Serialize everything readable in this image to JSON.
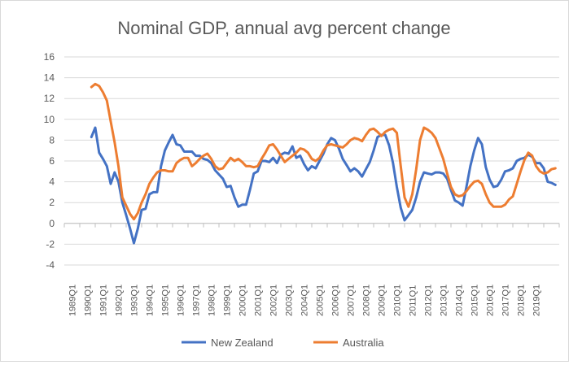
{
  "chart_data": {
    "type": "line",
    "title": "Nominal GDP, annual avg percent change",
    "xlabel": "",
    "ylabel": "",
    "ylim": [
      -4,
      16
    ],
    "yticks": [
      -4,
      -2,
      0,
      2,
      4,
      6,
      8,
      10,
      12,
      14,
      16
    ],
    "grid": "horizontal",
    "legend_position": "bottom",
    "x_tick_labels": [
      "1989Q1",
      "1990Q1",
      "1991Q1",
      "1992Q1",
      "1993Q1",
      "1994Q1",
      "1995Q1",
      "1996Q1",
      "1997Q1",
      "1998Q1",
      "1999Q1",
      "2000Q1",
      "2001Q1",
      "2002Q1",
      "2003Q1",
      "2004Q1",
      "2005Q1",
      "2006Q1",
      "2007Q1",
      "2008Q1",
      "2009Q1",
      "2010Q1",
      "2011Q1",
      "2012Q1",
      "2013Q1",
      "2014Q1",
      "2015Q1",
      "2016Q1",
      "2017Q1",
      "2018Q1",
      "2019Q1"
    ],
    "x_start": 1989.0,
    "x_end": 2021.0,
    "series": [
      {
        "name": "New Zealand",
        "color": "#4472C4",
        "points": [
          [
            1990.75,
            8.3
          ],
          [
            1991.0,
            9.2
          ],
          [
            1991.25,
            6.8
          ],
          [
            1991.5,
            6.2
          ],
          [
            1991.75,
            5.5
          ],
          [
            1992.0,
            3.8
          ],
          [
            1992.25,
            4.9
          ],
          [
            1992.5,
            4.0
          ],
          [
            1992.75,
            2.0
          ],
          [
            1993.0,
            0.8
          ],
          [
            1993.25,
            -0.5
          ],
          [
            1993.5,
            -1.9
          ],
          [
            1993.75,
            -0.5
          ],
          [
            1994.0,
            1.3
          ],
          [
            1994.25,
            1.4
          ],
          [
            1994.5,
            2.8
          ],
          [
            1994.75,
            3.0
          ],
          [
            1995.0,
            3.0
          ],
          [
            1995.25,
            5.5
          ],
          [
            1995.5,
            7.0
          ],
          [
            1995.75,
            7.8
          ],
          [
            1996.0,
            8.5
          ],
          [
            1996.25,
            7.6
          ],
          [
            1996.5,
            7.5
          ],
          [
            1996.75,
            6.9
          ],
          [
            1997.0,
            6.9
          ],
          [
            1997.25,
            6.9
          ],
          [
            1997.5,
            6.5
          ],
          [
            1997.75,
            6.5
          ],
          [
            1998.0,
            6.2
          ],
          [
            1998.25,
            6.1
          ],
          [
            1998.5,
            5.8
          ],
          [
            1998.75,
            5.1
          ],
          [
            1999.0,
            4.7
          ],
          [
            1999.25,
            4.3
          ],
          [
            1999.5,
            3.5
          ],
          [
            1999.75,
            3.6
          ],
          [
            2000.0,
            2.5
          ],
          [
            2000.25,
            1.6
          ],
          [
            2000.5,
            1.8
          ],
          [
            2000.75,
            1.8
          ],
          [
            2001.0,
            3.2
          ],
          [
            2001.25,
            4.8
          ],
          [
            2001.5,
            5.0
          ],
          [
            2001.75,
            6.0
          ],
          [
            2002.0,
            6.0
          ],
          [
            2002.25,
            5.9
          ],
          [
            2002.5,
            6.3
          ],
          [
            2002.75,
            5.8
          ],
          [
            2003.0,
            6.6
          ],
          [
            2003.25,
            6.8
          ],
          [
            2003.5,
            6.7
          ],
          [
            2003.75,
            7.4
          ],
          [
            2004.0,
            6.3
          ],
          [
            2004.25,
            6.5
          ],
          [
            2004.5,
            5.7
          ],
          [
            2004.75,
            5.1
          ],
          [
            2005.0,
            5.5
          ],
          [
            2005.25,
            5.3
          ],
          [
            2005.5,
            6.0
          ],
          [
            2005.75,
            6.7
          ],
          [
            2006.0,
            7.6
          ],
          [
            2006.25,
            8.2
          ],
          [
            2006.5,
            8.0
          ],
          [
            2006.75,
            7.2
          ],
          [
            2007.0,
            6.2
          ],
          [
            2007.25,
            5.6
          ],
          [
            2007.5,
            5.0
          ],
          [
            2007.75,
            5.3
          ],
          [
            2008.0,
            5.0
          ],
          [
            2008.25,
            4.5
          ],
          [
            2008.5,
            5.2
          ],
          [
            2008.75,
            5.9
          ],
          [
            2009.0,
            7.0
          ],
          [
            2009.25,
            8.3
          ],
          [
            2009.5,
            8.5
          ],
          [
            2009.75,
            8.5
          ],
          [
            2010.0,
            7.5
          ],
          [
            2010.25,
            5.8
          ],
          [
            2010.5,
            3.5
          ],
          [
            2010.75,
            1.5
          ],
          [
            2011.0,
            0.3
          ],
          [
            2011.25,
            0.8
          ],
          [
            2011.5,
            1.3
          ],
          [
            2011.75,
            2.5
          ],
          [
            2012.0,
            4.0
          ],
          [
            2012.25,
            4.9
          ],
          [
            2012.5,
            4.8
          ],
          [
            2012.75,
            4.7
          ],
          [
            2013.0,
            4.9
          ],
          [
            2013.25,
            4.9
          ],
          [
            2013.5,
            4.8
          ],
          [
            2013.75,
            4.3
          ],
          [
            2014.0,
            3.2
          ],
          [
            2014.25,
            2.2
          ],
          [
            2014.5,
            2.0
          ],
          [
            2014.75,
            1.7
          ],
          [
            2015.0,
            3.5
          ],
          [
            2015.25,
            5.5
          ],
          [
            2015.5,
            7.0
          ],
          [
            2015.75,
            8.2
          ],
          [
            2016.0,
            7.6
          ],
          [
            2016.25,
            5.4
          ],
          [
            2016.5,
            4.2
          ],
          [
            2016.75,
            3.5
          ],
          [
            2017.0,
            3.6
          ],
          [
            2017.25,
            4.2
          ],
          [
            2017.5,
            5.0
          ],
          [
            2017.75,
            5.1
          ],
          [
            2018.0,
            5.3
          ],
          [
            2018.25,
            6.0
          ],
          [
            2018.5,
            6.2
          ],
          [
            2018.75,
            6.3
          ],
          [
            2019.0,
            6.6
          ],
          [
            2019.25,
            6.4
          ],
          [
            2019.5,
            5.8
          ],
          [
            2019.75,
            5.8
          ],
          [
            2020.0,
            5.3
          ],
          [
            2020.25,
            4.0
          ],
          [
            2020.5,
            3.9
          ],
          [
            2020.75,
            3.7
          ]
        ]
      },
      {
        "name": "Australia",
        "color": "#ED7D31",
        "points": [
          [
            1990.75,
            13.1
          ],
          [
            1991.0,
            13.4
          ],
          [
            1991.25,
            13.2
          ],
          [
            1991.5,
            12.6
          ],
          [
            1991.75,
            11.8
          ],
          [
            1992.0,
            9.8
          ],
          [
            1992.25,
            7.8
          ],
          [
            1992.5,
            5.5
          ],
          [
            1992.75,
            2.5
          ],
          [
            1993.0,
            1.7
          ],
          [
            1993.25,
            0.9
          ],
          [
            1993.5,
            0.4
          ],
          [
            1993.75,
            1.0
          ],
          [
            1994.0,
            2.0
          ],
          [
            1994.25,
            2.8
          ],
          [
            1994.5,
            3.8
          ],
          [
            1994.75,
            4.4
          ],
          [
            1995.0,
            4.9
          ],
          [
            1995.25,
            5.1
          ],
          [
            1995.5,
            5.1
          ],
          [
            1995.75,
            5.0
          ],
          [
            1996.0,
            5.0
          ],
          [
            1996.25,
            5.8
          ],
          [
            1996.5,
            6.1
          ],
          [
            1996.75,
            6.3
          ],
          [
            1997.0,
            6.3
          ],
          [
            1997.25,
            5.5
          ],
          [
            1997.5,
            5.8
          ],
          [
            1997.75,
            6.2
          ],
          [
            1998.0,
            6.5
          ],
          [
            1998.25,
            6.7
          ],
          [
            1998.5,
            6.2
          ],
          [
            1998.75,
            5.5
          ],
          [
            1999.0,
            5.2
          ],
          [
            1999.25,
            5.3
          ],
          [
            1999.5,
            5.8
          ],
          [
            1999.75,
            6.3
          ],
          [
            2000.0,
            6.0
          ],
          [
            2000.25,
            6.2
          ],
          [
            2000.5,
            5.9
          ],
          [
            2000.75,
            5.5
          ],
          [
            2001.0,
            5.5
          ],
          [
            2001.25,
            5.4
          ],
          [
            2001.5,
            5.5
          ],
          [
            2001.75,
            6.2
          ],
          [
            2002.0,
            6.8
          ],
          [
            2002.25,
            7.5
          ],
          [
            2002.5,
            7.6
          ],
          [
            2002.75,
            7.1
          ],
          [
            2003.0,
            6.5
          ],
          [
            2003.25,
            5.9
          ],
          [
            2003.5,
            6.2
          ],
          [
            2003.75,
            6.5
          ],
          [
            2004.0,
            6.8
          ],
          [
            2004.25,
            7.2
          ],
          [
            2004.5,
            7.1
          ],
          [
            2004.75,
            6.8
          ],
          [
            2005.0,
            6.2
          ],
          [
            2005.25,
            6.0
          ],
          [
            2005.5,
            6.3
          ],
          [
            2005.75,
            7.0
          ],
          [
            2006.0,
            7.5
          ],
          [
            2006.25,
            7.6
          ],
          [
            2006.5,
            7.5
          ],
          [
            2006.75,
            7.4
          ],
          [
            2007.0,
            7.3
          ],
          [
            2007.25,
            7.6
          ],
          [
            2007.5,
            8.0
          ],
          [
            2007.75,
            8.2
          ],
          [
            2008.0,
            8.1
          ],
          [
            2008.25,
            7.9
          ],
          [
            2008.5,
            8.5
          ],
          [
            2008.75,
            9.0
          ],
          [
            2009.0,
            9.1
          ],
          [
            2009.25,
            8.8
          ],
          [
            2009.5,
            8.4
          ],
          [
            2009.75,
            8.8
          ],
          [
            2010.0,
            9.0
          ],
          [
            2010.25,
            9.1
          ],
          [
            2010.5,
            8.7
          ],
          [
            2010.75,
            5.5
          ],
          [
            2011.0,
            2.5
          ],
          [
            2011.25,
            1.6
          ],
          [
            2011.5,
            2.8
          ],
          [
            2011.75,
            5.2
          ],
          [
            2012.0,
            8.0
          ],
          [
            2012.25,
            9.2
          ],
          [
            2012.5,
            9.0
          ],
          [
            2012.75,
            8.7
          ],
          [
            2013.0,
            8.2
          ],
          [
            2013.25,
            7.2
          ],
          [
            2013.5,
            6.2
          ],
          [
            2013.75,
            4.8
          ],
          [
            2014.0,
            3.5
          ],
          [
            2014.25,
            2.8
          ],
          [
            2014.5,
            2.6
          ],
          [
            2014.75,
            2.7
          ],
          [
            2015.0,
            3.1
          ],
          [
            2015.25,
            3.6
          ],
          [
            2015.5,
            4.0
          ],
          [
            2015.75,
            4.1
          ],
          [
            2016.0,
            3.8
          ],
          [
            2016.25,
            2.8
          ],
          [
            2016.5,
            2.0
          ],
          [
            2016.75,
            1.6
          ],
          [
            2017.0,
            1.6
          ],
          [
            2017.25,
            1.6
          ],
          [
            2017.5,
            1.8
          ],
          [
            2017.75,
            2.3
          ],
          [
            2018.0,
            2.6
          ],
          [
            2018.25,
            3.8
          ],
          [
            2018.5,
            5.0
          ],
          [
            2018.75,
            6.1
          ],
          [
            2019.0,
            6.8
          ],
          [
            2019.25,
            6.5
          ],
          [
            2019.5,
            5.5
          ],
          [
            2019.75,
            5.0
          ],
          [
            2020.0,
            4.8
          ],
          [
            2020.25,
            4.9
          ],
          [
            2020.5,
            5.2
          ],
          [
            2020.75,
            5.3
          ]
        ]
      }
    ]
  }
}
